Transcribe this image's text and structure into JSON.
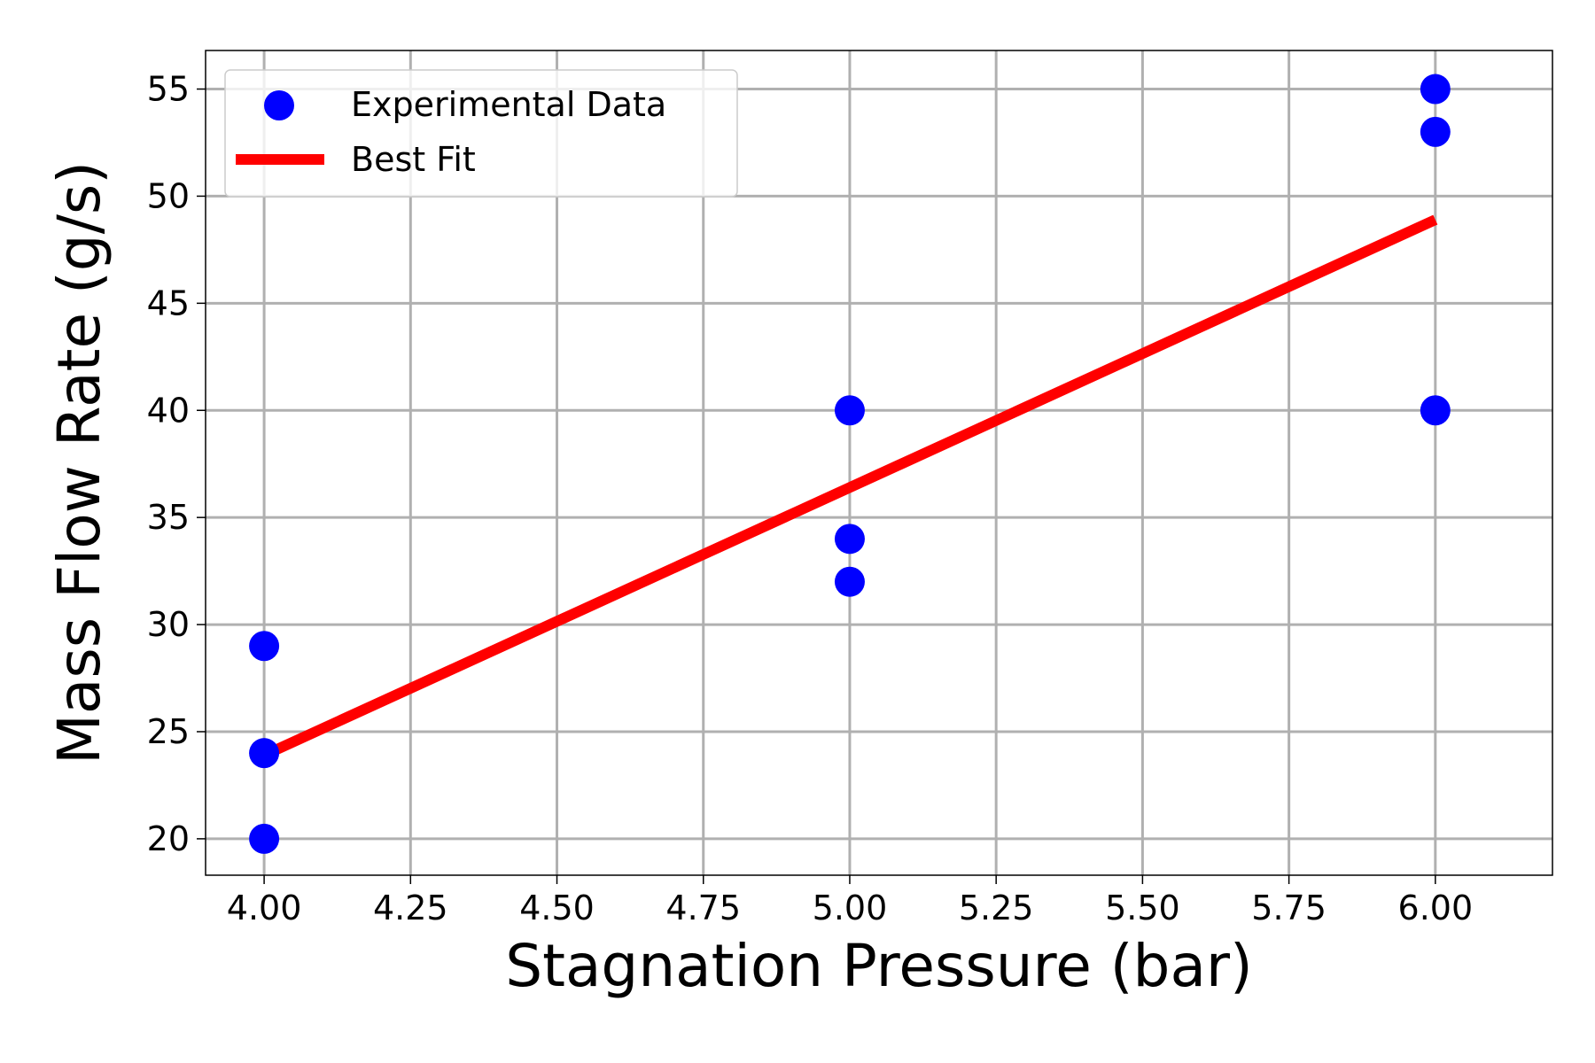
{
  "chart_data": {
    "type": "scatter",
    "xlabel": "Stagnation Pressure (bar)",
    "ylabel": "Mass Flow Rate (g/s)",
    "xlim": [
      3.9,
      6.2
    ],
    "ylim": [
      18.3,
      56.8
    ],
    "x_ticks": [
      4.0,
      4.25,
      4.5,
      4.75,
      5.0,
      5.25,
      5.5,
      5.75,
      6.0
    ],
    "x_tick_labels": [
      "4.00",
      "4.25",
      "4.50",
      "4.75",
      "5.00",
      "5.25",
      "5.50",
      "5.75",
      "6.00"
    ],
    "y_ticks": [
      20,
      25,
      30,
      35,
      40,
      45,
      50,
      55
    ],
    "y_tick_labels": [
      "20",
      "25",
      "30",
      "35",
      "40",
      "45",
      "50",
      "55"
    ],
    "grid": true,
    "legend_position": "top-left",
    "series": [
      {
        "name": "Experimental Data",
        "kind": "scatter",
        "color": "#0000ff",
        "points": [
          {
            "x": 4.0,
            "y": 29
          },
          {
            "x": 4.0,
            "y": 24
          },
          {
            "x": 4.0,
            "y": 20
          },
          {
            "x": 5.0,
            "y": 40
          },
          {
            "x": 5.0,
            "y": 34
          },
          {
            "x": 5.0,
            "y": 32
          },
          {
            "x": 6.0,
            "y": 55
          },
          {
            "x": 6.0,
            "y": 53
          },
          {
            "x": 6.0,
            "y": 40
          }
        ]
      },
      {
        "name": "Best Fit",
        "kind": "line",
        "color": "#ff0000",
        "points": [
          {
            "x": 4.0,
            "y": 23.9
          },
          {
            "x": 6.0,
            "y": 48.9
          }
        ]
      }
    ]
  }
}
